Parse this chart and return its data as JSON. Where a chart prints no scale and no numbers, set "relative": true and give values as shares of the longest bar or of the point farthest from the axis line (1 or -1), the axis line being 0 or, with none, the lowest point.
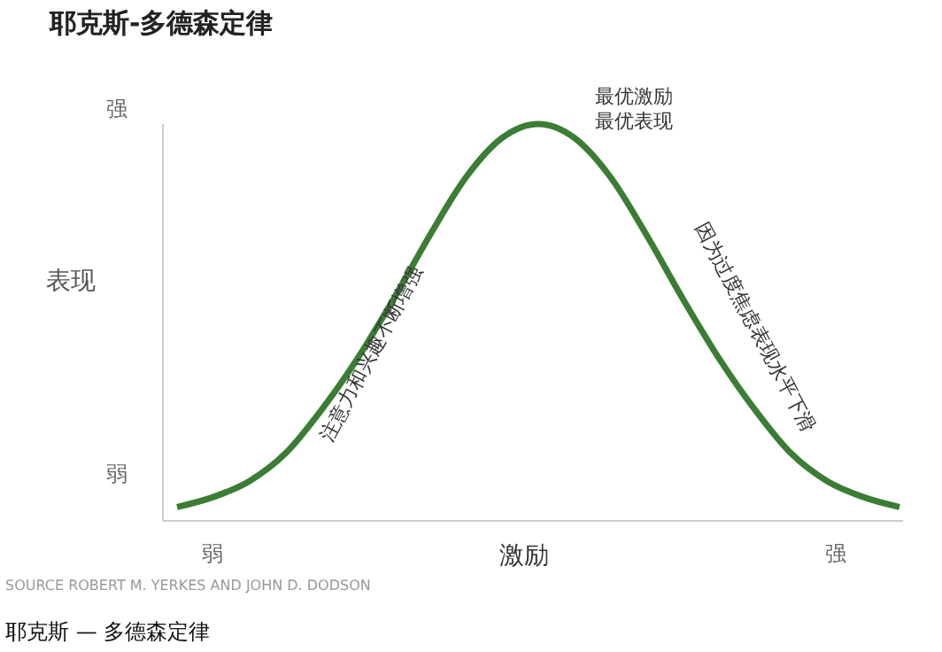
{
  "chart_data": {
    "type": "line",
    "title": "耶克斯-多德森定律",
    "xlabel": "激励",
    "ylabel": "表现",
    "relative": true,
    "categories": [
      null,
      null,
      null,
      null,
      null,
      null,
      null,
      null,
      null,
      null,
      null,
      null,
      null,
      null,
      null,
      null,
      null,
      null,
      null,
      null,
      null
    ],
    "series": [
      {
        "color": "#3a7d34",
        "values": [
          0.035,
          0.06,
          0.1,
          0.17,
          0.28,
          0.41,
          0.56,
          0.72,
          0.866,
          0.965,
          1,
          0.965,
          0.866,
          0.72,
          0.56,
          0.41,
          0.28,
          0.17,
          0.1,
          0.06,
          0.035
        ]
      }
    ],
    "marker": "none",
    "line_style": "solid",
    "grid": false,
    "legend": false,
    "annotations": [
      "强",
      "弱",
      "弱",
      "强",
      "最优激励",
      "最优表现",
      "注意力和兴趣不断增强",
      "因为过度焦虑表现水平下滑",
      "SOURCE ROBERT M. YERKES AND JOHN D. DODSON",
      "耶克斯 — 多德森定律"
    ]
  }
}
